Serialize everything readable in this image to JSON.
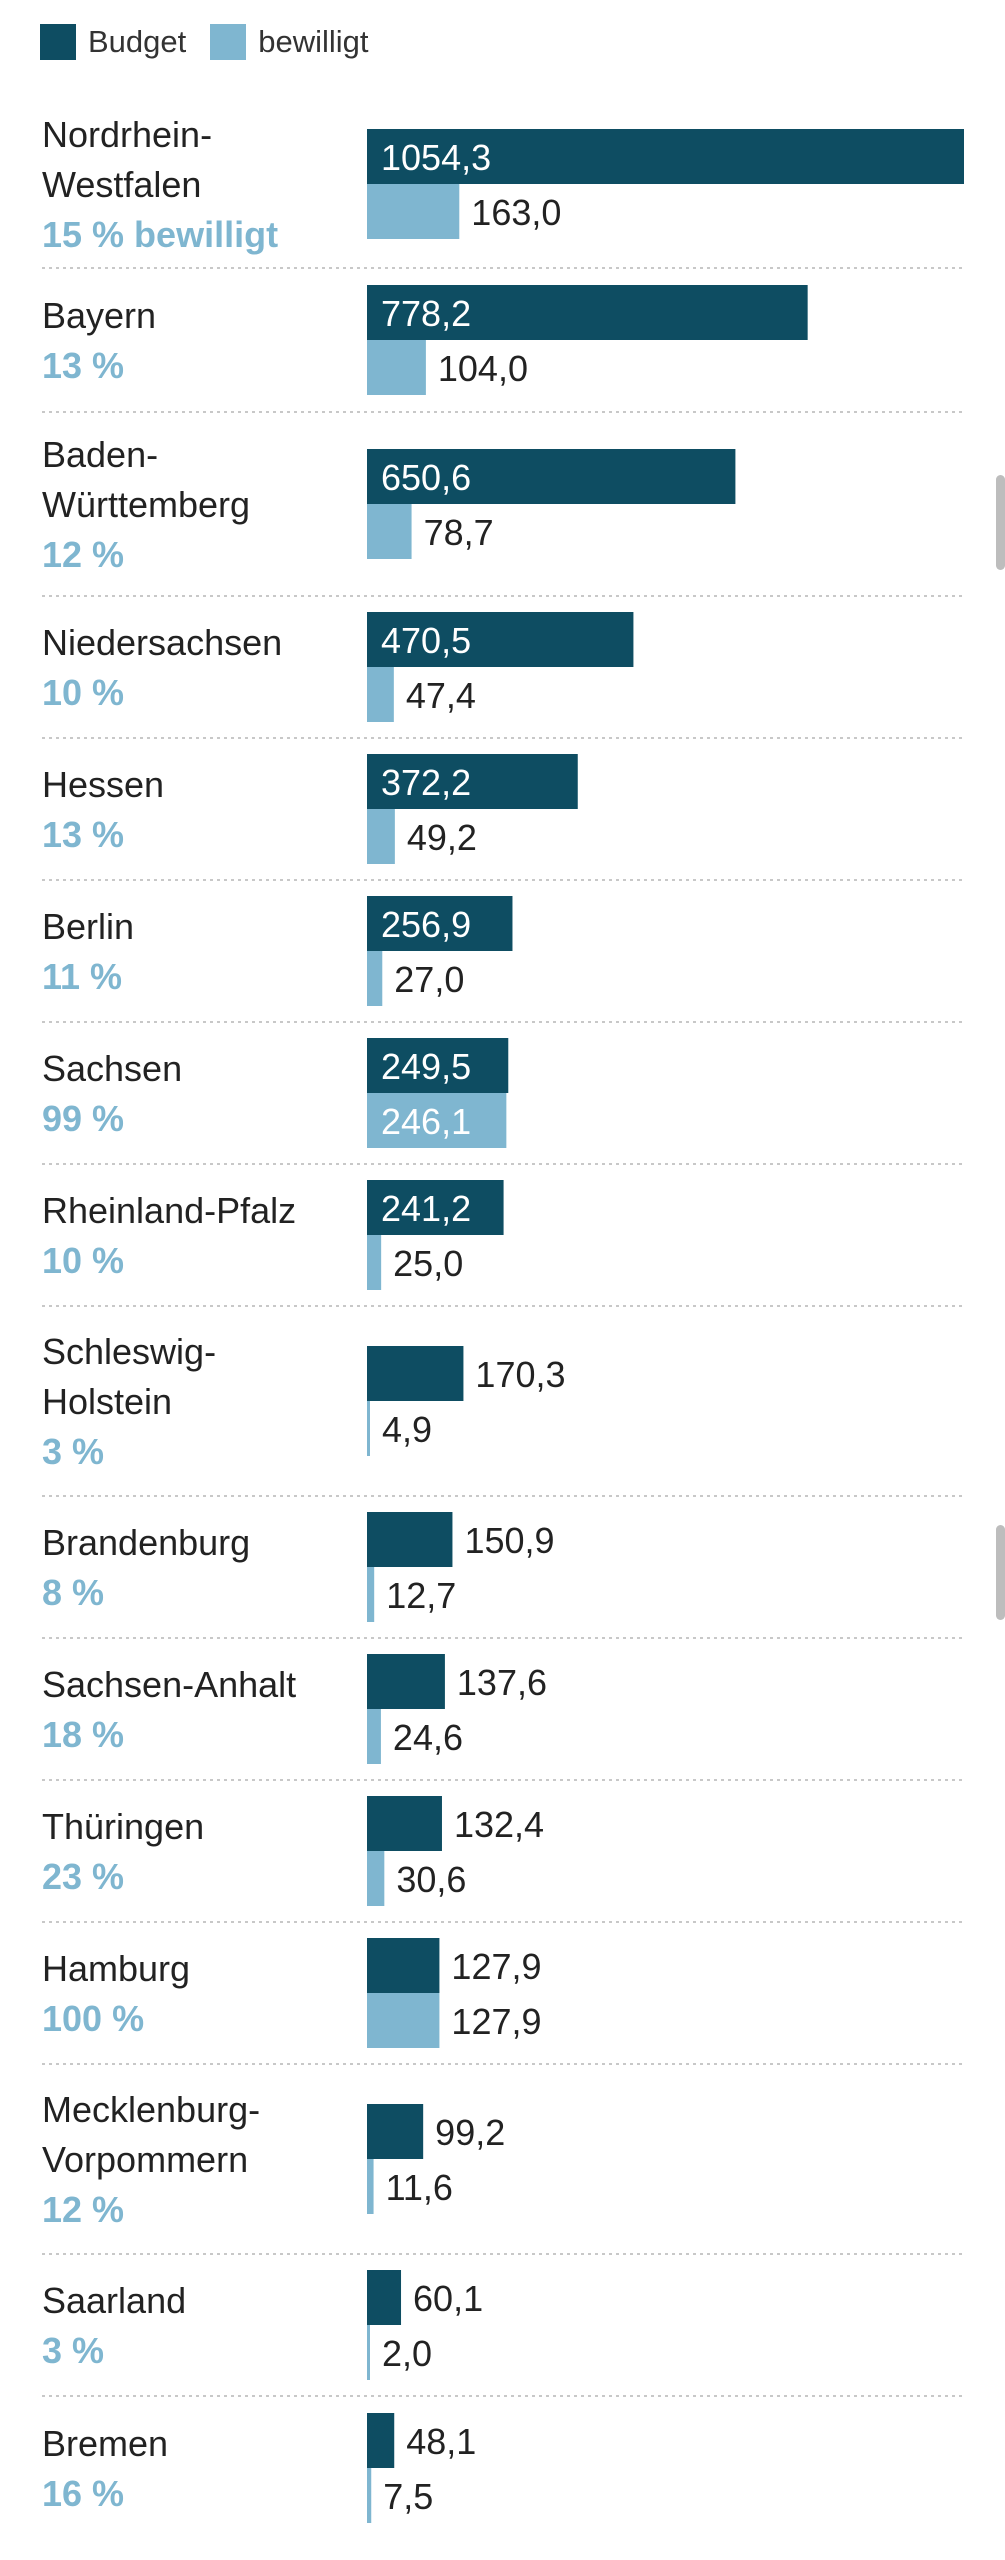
{
  "legend": {
    "budget_label": "Budget",
    "approved_label": "bewilligt"
  },
  "colors": {
    "budget": "#0e4d62",
    "approved": "#7fb6d0",
    "pct_text": "#7fb6d0",
    "label_text": "#222222",
    "value_on_bar": "#ffffff",
    "value_outside": "#222222",
    "separator": "#c8c8c8"
  },
  "chart_data": {
    "type": "bar",
    "orientation": "horizontal",
    "grouped": true,
    "series": [
      {
        "name": "Budget",
        "values": [
          1054.3,
          778.2,
          650.6,
          470.5,
          372.2,
          256.9,
          249.5,
          241.2,
          170.3,
          150.9,
          137.6,
          132.4,
          127.9,
          99.2,
          60.1,
          48.1
        ]
      },
      {
        "name": "bewilligt",
        "values": [
          163.0,
          104.0,
          78.7,
          47.4,
          49.2,
          27.0,
          246.1,
          25.0,
          4.9,
          12.7,
          24.6,
          30.6,
          127.9,
          11.6,
          2.0,
          7.5
        ]
      }
    ],
    "xlim": [
      0,
      1054.3
    ],
    "grid": false,
    "legend_position": "top-left",
    "rows": [
      {
        "label_lines": [
          "Nordrhein-",
          "Westfalen"
        ],
        "pct": "15 % bewilligt",
        "budget": 1054.3,
        "budget_text": "1054,3",
        "approved": 163.0,
        "approved_text": "163,0"
      },
      {
        "label_lines": [
          "Bayern"
        ],
        "pct": "13 %",
        "budget": 778.2,
        "budget_text": "778,2",
        "approved": 104.0,
        "approved_text": "104,0"
      },
      {
        "label_lines": [
          "Baden-",
          "Württemberg"
        ],
        "pct": "12 %",
        "budget": 650.6,
        "budget_text": "650,6",
        "approved": 78.7,
        "approved_text": "78,7"
      },
      {
        "label_lines": [
          "Niedersachsen"
        ],
        "pct": "10 %",
        "budget": 470.5,
        "budget_text": "470,5",
        "approved": 47.4,
        "approved_text": "47,4"
      },
      {
        "label_lines": [
          "Hessen"
        ],
        "pct": "13 %",
        "budget": 372.2,
        "budget_text": "372,2",
        "approved": 49.2,
        "approved_text": "49,2"
      },
      {
        "label_lines": [
          "Berlin"
        ],
        "pct": "11 %",
        "budget": 256.9,
        "budget_text": "256,9",
        "approved": 27.0,
        "approved_text": "27,0"
      },
      {
        "label_lines": [
          "Sachsen"
        ],
        "pct": "99 %",
        "budget": 249.5,
        "budget_text": "249,5",
        "approved": 246.1,
        "approved_text": "246,1"
      },
      {
        "label_lines": [
          "Rheinland-Pfalz"
        ],
        "pct": "10 %",
        "budget": 241.2,
        "budget_text": "241,2",
        "approved": 25.0,
        "approved_text": "25,0"
      },
      {
        "label_lines": [
          "Schleswig-",
          "Holstein"
        ],
        "pct": "3 %",
        "budget": 170.3,
        "budget_text": "170,3",
        "approved": 4.9,
        "approved_text": "4,9"
      },
      {
        "label_lines": [
          "Brandenburg"
        ],
        "pct": "8 %",
        "budget": 150.9,
        "budget_text": "150,9",
        "approved": 12.7,
        "approved_text": "12,7"
      },
      {
        "label_lines": [
          "Sachsen-Anhalt"
        ],
        "pct": "18 %",
        "budget": 137.6,
        "budget_text": "137,6",
        "approved": 24.6,
        "approved_text": "24,6"
      },
      {
        "label_lines": [
          "Thüringen"
        ],
        "pct": "23 %",
        "budget": 132.4,
        "budget_text": "132,4",
        "approved": 30.6,
        "approved_text": "30,6"
      },
      {
        "label_lines": [
          "Hamburg"
        ],
        "pct": "100 %",
        "budget": 127.9,
        "budget_text": "127,9",
        "approved": 127.9,
        "approved_text": "127,9"
      },
      {
        "label_lines": [
          "Mecklenburg-",
          "Vorpommern"
        ],
        "pct": "12 %",
        "budget": 99.2,
        "budget_text": "99,2",
        "approved": 11.6,
        "approved_text": "11,6"
      },
      {
        "label_lines": [
          "Saarland"
        ],
        "pct": "3 %",
        "budget": 60.1,
        "budget_text": "60,1",
        "approved": 2.0,
        "approved_text": "2,0"
      },
      {
        "label_lines": [
          "Bremen"
        ],
        "pct": "16 %",
        "budget": 48.1,
        "budget_text": "48,1",
        "approved": 7.5,
        "approved_text": "7,5"
      }
    ]
  }
}
